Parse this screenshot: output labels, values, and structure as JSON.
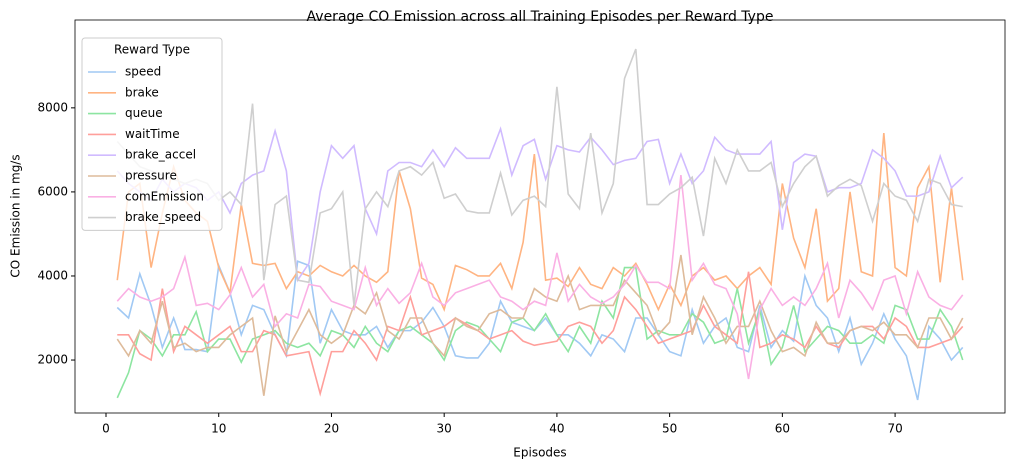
{
  "chart_data": {
    "type": "line",
    "title": "Average CO Emission across all Training Episodes per Reward Type",
    "x_label": "Episodes",
    "y_label": "CO Emission in mg/s",
    "legend_title": "Reward Type",
    "legend_position": "upper left",
    "x": [
      1,
      2,
      3,
      4,
      5,
      6,
      7,
      8,
      9,
      10,
      11,
      12,
      13,
      14,
      15,
      16,
      17,
      18,
      19,
      20,
      21,
      22,
      23,
      24,
      25,
      26,
      27,
      28,
      29,
      30,
      31,
      32,
      33,
      34,
      35,
      36,
      37,
      38,
      39,
      40,
      41,
      42,
      43,
      44,
      45,
      46,
      47,
      48,
      49,
      50,
      51,
      52,
      53,
      54,
      55,
      56,
      57,
      58,
      59,
      60,
      61,
      62,
      63,
      64,
      65,
      66,
      67,
      68,
      69,
      70,
      71,
      72,
      73,
      74,
      75,
      76
    ],
    "xlim": [
      -2.75,
      79.75
    ],
    "xticks": [
      0,
      10,
      20,
      30,
      40,
      50,
      60,
      70
    ],
    "ylim": [
      740,
      10090
    ],
    "yticks": [
      2000,
      4000,
      6000,
      8000
    ],
    "series": [
      {
        "name": "speed",
        "color": "#a1c9f4",
        "values": [
          3250,
          3000,
          4050,
          3300,
          2300,
          3000,
          2250,
          2250,
          2200,
          4250,
          3600,
          2600,
          3300,
          3200,
          2600,
          2100,
          4350,
          4250,
          2400,
          3200,
          2700,
          2600,
          2600,
          2800,
          2300,
          2700,
          2700,
          2900,
          3250,
          2800,
          2100,
          2050,
          2050,
          2400,
          3400,
          2900,
          2800,
          2700,
          3000,
          2600,
          2600,
          2400,
          2100,
          2600,
          2500,
          2200,
          3000,
          3000,
          2600,
          2200,
          2100,
          3200,
          2400,
          2800,
          3000,
          2300,
          2200,
          3300,
          2300,
          2700,
          2450,
          4000,
          3300,
          3000,
          2200,
          3000,
          1900,
          2400,
          3100,
          2500,
          2100,
          1050,
          2800,
          2500,
          2000,
          2300
        ]
      },
      {
        "name": "brake",
        "color": "#ffb482",
        "values": [
          3900,
          6000,
          6200,
          4200,
          5500,
          6600,
          5800,
          5500,
          5300,
          4200,
          3600,
          5700,
          4300,
          4250,
          4300,
          3700,
          4100,
          4000,
          4250,
          4100,
          4000,
          4250,
          4000,
          3850,
          4100,
          6500,
          5600,
          3950,
          3800,
          3200,
          4250,
          4150,
          4000,
          4000,
          4300,
          3700,
          4800,
          6900,
          3900,
          3950,
          3750,
          4200,
          3800,
          3700,
          4200,
          4000,
          4300,
          3800,
          3200,
          3800,
          3300,
          4000,
          4200,
          3900,
          4000,
          3700,
          4000,
          4200,
          3800,
          6200,
          4900,
          4200,
          5600,
          3400,
          3700,
          6000,
          4100,
          4000,
          7400,
          4200,
          4000,
          6100,
          6600,
          3850,
          6100,
          3900
        ]
      },
      {
        "name": "queue",
        "color": "#8de5a1",
        "values": [
          1100,
          1700,
          2700,
          2500,
          2100,
          2600,
          2600,
          3150,
          2200,
          2500,
          2500,
          1950,
          2500,
          2600,
          2700,
          2400,
          2300,
          2400,
          2100,
          2700,
          2600,
          2300,
          2800,
          2400,
          2200,
          2700,
          2800,
          2600,
          2400,
          2000,
          2700,
          2900,
          2800,
          2500,
          2200,
          2900,
          3000,
          2700,
          3100,
          2600,
          2200,
          2800,
          2400,
          3400,
          3000,
          4200,
          4200,
          2500,
          2700,
          2600,
          2600,
          3100,
          2900,
          2400,
          2500,
          3700,
          2400,
          3200,
          1900,
          2300,
          3300,
          2200,
          2500,
          2800,
          2700,
          2400,
          2400,
          2600,
          2400,
          3300,
          3200,
          2500,
          2500,
          3200,
          2800,
          2000
        ]
      },
      {
        "name": "waitTime",
        "color": "#ff9f9b",
        "values": [
          2600,
          2600,
          2150,
          2000,
          3700,
          2200,
          2800,
          2600,
          2400,
          2600,
          2800,
          2200,
          2200,
          2700,
          2600,
          2100,
          2150,
          2200,
          1200,
          2200,
          2200,
          2700,
          2400,
          2000,
          2800,
          2700,
          3500,
          2600,
          2700,
          2800,
          3000,
          2850,
          2700,
          2500,
          2600,
          2700,
          2450,
          2350,
          2400,
          2450,
          2800,
          2900,
          2800,
          2400,
          2700,
          3500,
          3200,
          2800,
          2400,
          2500,
          2600,
          2700,
          3300,
          2800,
          2600,
          2400,
          4100,
          2300,
          2400,
          2600,
          2500,
          2300,
          2800,
          2400,
          2300,
          2700,
          2800,
          2800,
          2500,
          3000,
          2800,
          2300,
          2300,
          2400,
          2500,
          2800
        ]
      },
      {
        "name": "brake_accel",
        "color": "#d0bbff",
        "values": [
          6500,
          6200,
          6000,
          5800,
          6300,
          6000,
          6200,
          6100,
          5800,
          6000,
          5500,
          6200,
          6400,
          6500,
          7450,
          6500,
          3900,
          4300,
          6000,
          7100,
          6800,
          7100,
          5600,
          5000,
          6500,
          6700,
          6700,
          6600,
          7000,
          6600,
          7050,
          6800,
          6800,
          6800,
          7500,
          6400,
          7100,
          7250,
          6300,
          7100,
          7000,
          6950,
          7300,
          7000,
          6650,
          6750,
          6800,
          7200,
          7250,
          6200,
          6900,
          6200,
          6500,
          7300,
          7000,
          6900,
          6900,
          6900,
          7200,
          5100,
          6700,
          6900,
          6850,
          6000,
          6100,
          6100,
          6200,
          7000,
          6800,
          6500,
          5900,
          5900,
          6000,
          6850,
          6100,
          6350
        ]
      },
      {
        "name": "pressure",
        "color": "#debb9b",
        "values": [
          2500,
          2100,
          2700,
          2400,
          3400,
          2300,
          2400,
          2200,
          2300,
          2300,
          2600,
          2800,
          3000,
          1150,
          3050,
          2200,
          2700,
          3200,
          2600,
          2400,
          2600,
          3300,
          3100,
          3600,
          2700,
          2500,
          3000,
          3000,
          2400,
          2100,
          3000,
          2800,
          2700,
          3100,
          3200,
          3000,
          3000,
          3700,
          3500,
          3400,
          4000,
          3200,
          3300,
          3300,
          3300,
          3900,
          3600,
          3300,
          2600,
          2900,
          4500,
          2600,
          3500,
          3000,
          2400,
          2800,
          2800,
          3400,
          2700,
          2200,
          2300,
          2100,
          2900,
          2400,
          2400,
          2700,
          2800,
          2700,
          2900,
          2600,
          2600,
          2300,
          3000,
          3000,
          2500,
          3000
        ]
      },
      {
        "name": "comEmission",
        "color": "#fab0e4",
        "values": [
          3400,
          3700,
          3500,
          3400,
          3500,
          3700,
          4450,
          3300,
          3350,
          3200,
          3550,
          4200,
          3500,
          3800,
          2800,
          3100,
          3000,
          3800,
          3750,
          3400,
          3300,
          3200,
          4200,
          3300,
          3700,
          3350,
          3600,
          4300,
          3500,
          3300,
          3600,
          3700,
          3800,
          3900,
          3500,
          3400,
          3200,
          3400,
          3300,
          4550,
          3400,
          3800,
          3500,
          3350,
          3500,
          3800,
          4250,
          3850,
          3850,
          3700,
          6400,
          3900,
          4300,
          3800,
          3700,
          3100,
          1550,
          3200,
          3700,
          3300,
          3500,
          3300,
          3700,
          4300,
          3000,
          3900,
          3600,
          3200,
          3900,
          4000,
          3100,
          4100,
          3500,
          3300,
          3200,
          3550
        ]
      },
      {
        "name": "brake_speed",
        "color": "#cfcfcf",
        "values": [
          7200,
          6900,
          6600,
          6500,
          6400,
          6300,
          6200,
          6300,
          6200,
          5800,
          6000,
          5700,
          8100,
          3900,
          5700,
          5900,
          3900,
          3850,
          5500,
          5600,
          6000,
          3300,
          5600,
          6000,
          5650,
          6500,
          6600,
          6400,
          6700,
          5850,
          5950,
          5550,
          5500,
          5500,
          6450,
          5450,
          5800,
          5900,
          5650,
          8500,
          5950,
          5600,
          7400,
          5500,
          6200,
          8700,
          9400,
          5700,
          5700,
          5950,
          6100,
          6350,
          4950,
          6800,
          6200,
          7000,
          6500,
          6500,
          6700,
          5650,
          6200,
          6600,
          6850,
          5900,
          6150,
          6300,
          6150,
          5300,
          6200,
          5900,
          5800,
          5300,
          6300,
          6200,
          5700,
          5650
        ]
      }
    ]
  }
}
